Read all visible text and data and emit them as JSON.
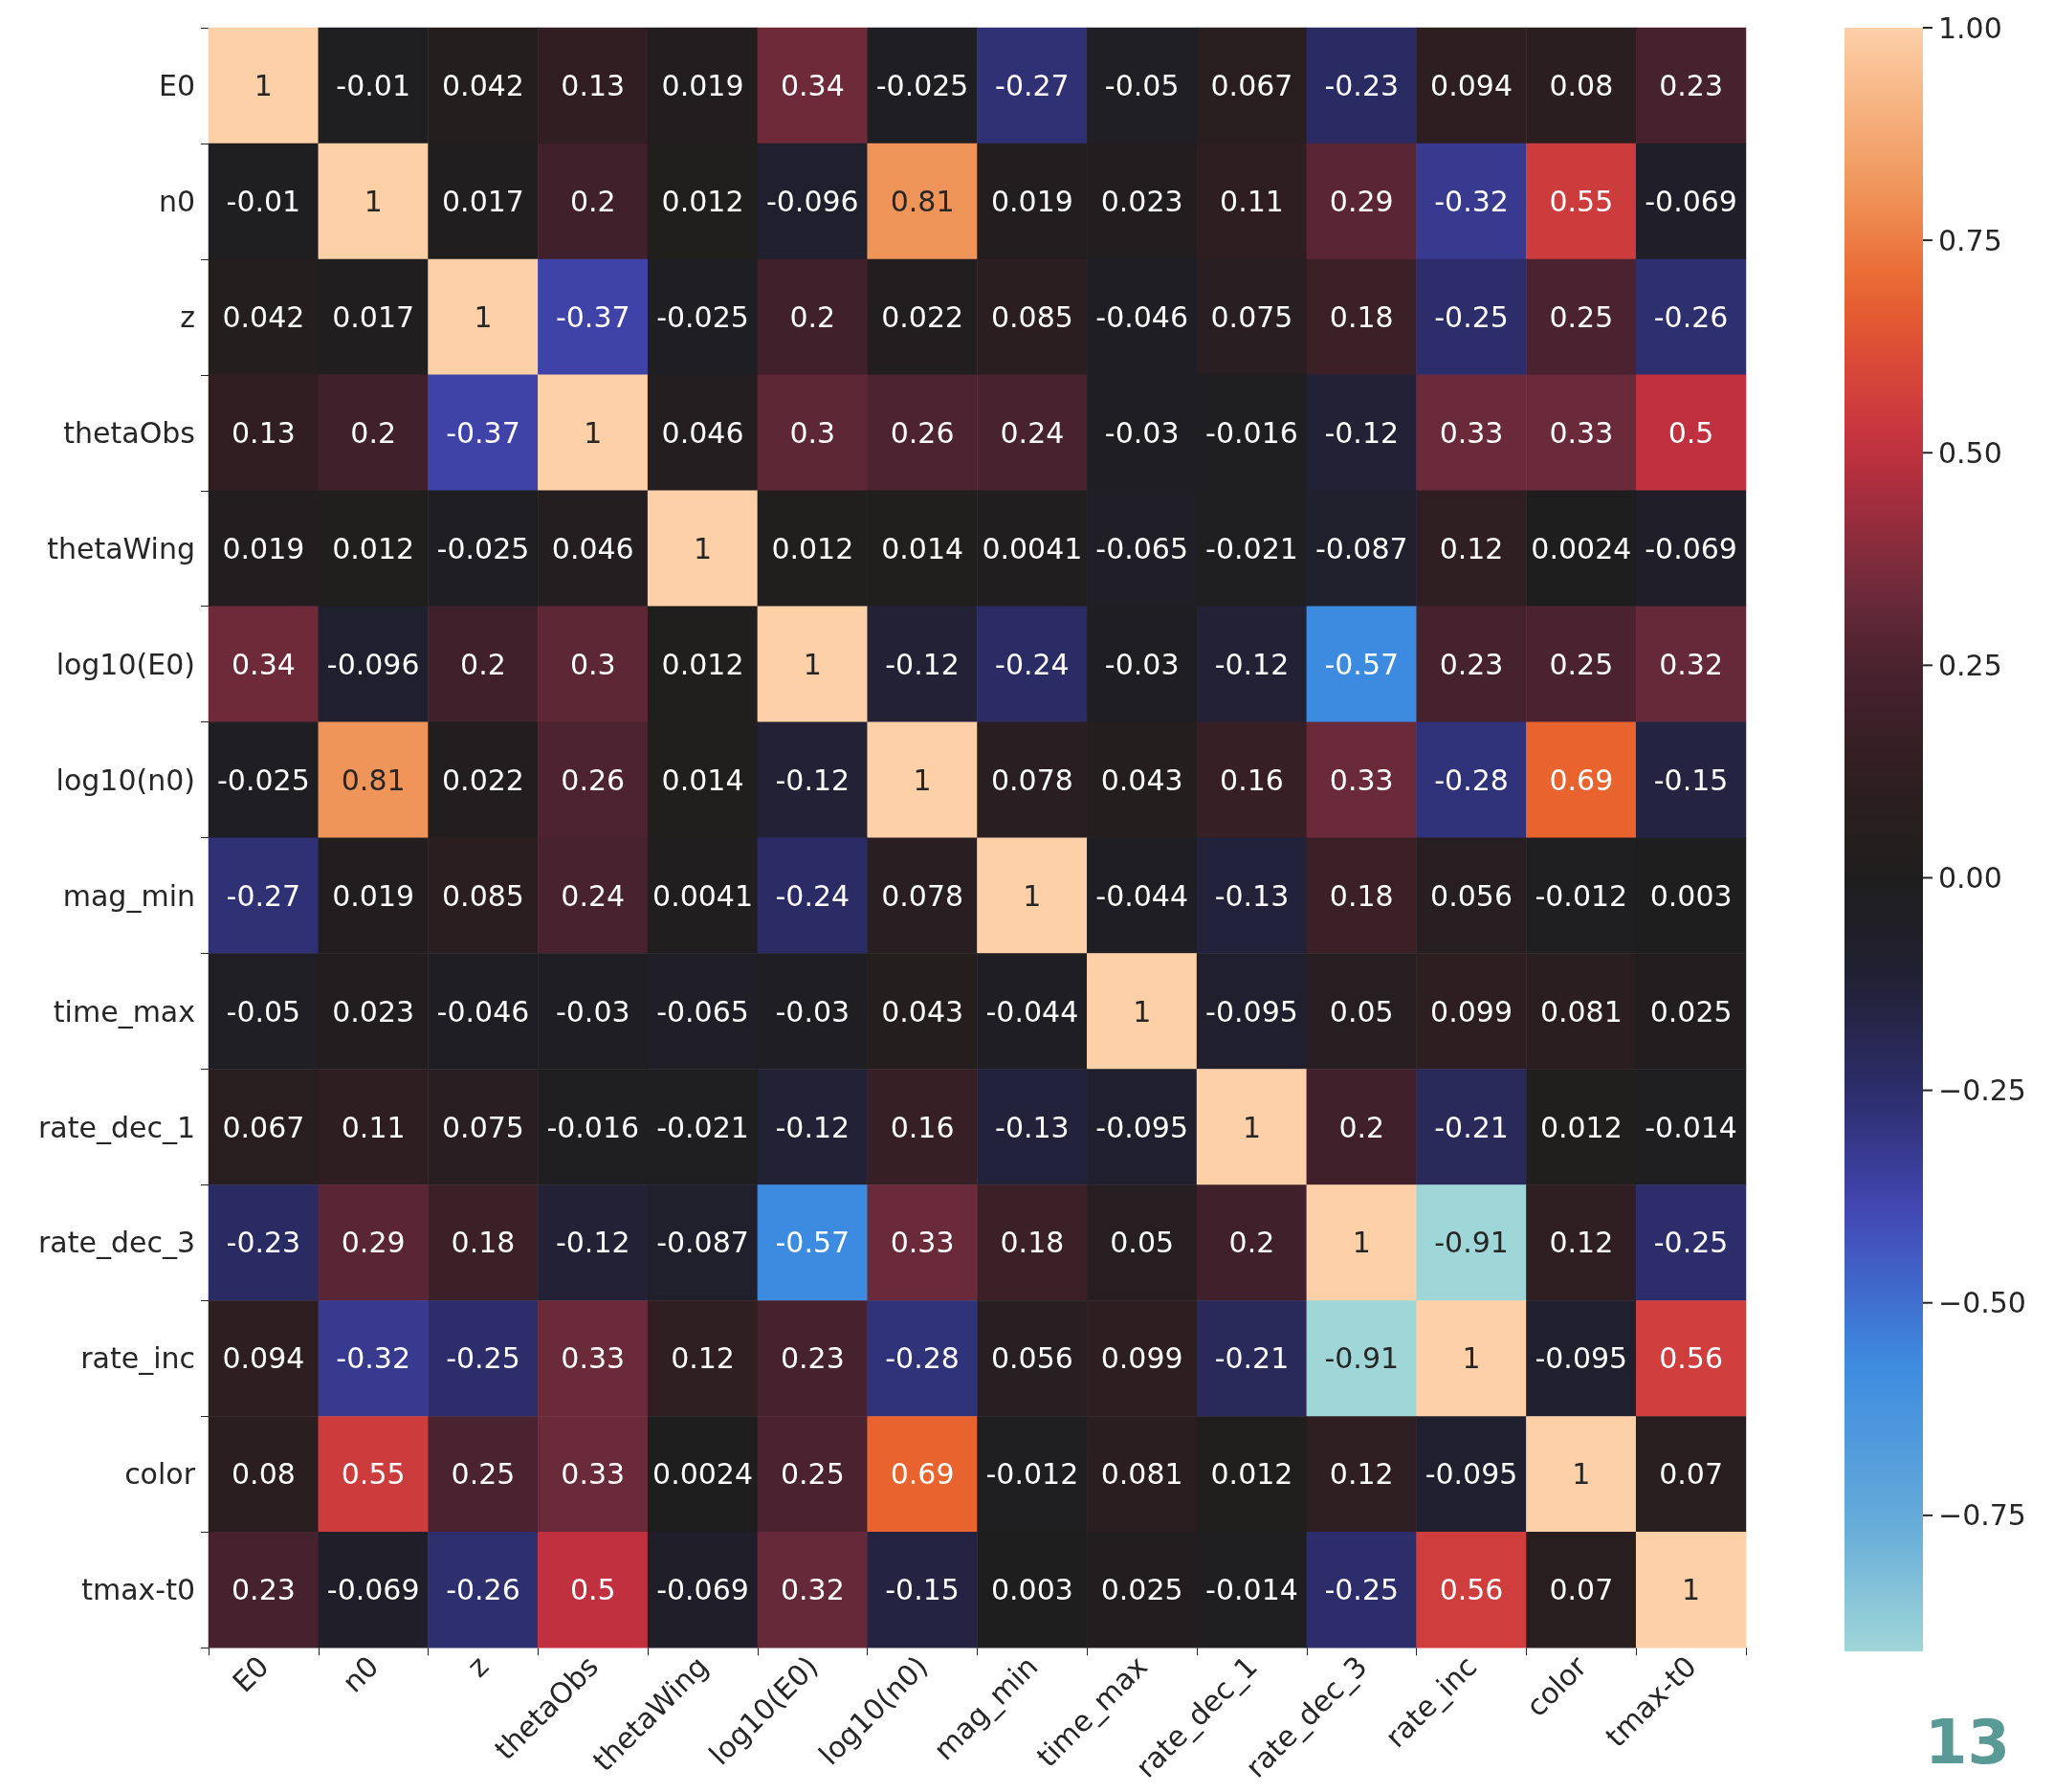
{
  "chart_data": {
    "type": "heatmap",
    "categories": [
      "E0",
      "n0",
      "z",
      "thetaObs",
      "thetaWing",
      "log10(E0)",
      "log10(n0)",
      "mag_min",
      "time_max",
      "rate_dec_1",
      "rate_dec_3",
      "rate_inc",
      "color",
      "tmax-t0"
    ],
    "y_categories": [
      "E0",
      "n0",
      "z",
      "thetaObs",
      "thetaWing",
      "log10(E0)",
      "log10(n0)",
      "mag_min",
      "time_max",
      "rate_dec_1",
      "rate_dec_3",
      "rate_inc",
      "color",
      "tmax-t0"
    ],
    "cells": [
      [
        1,
        -0.01,
        0.042,
        0.13,
        0.019,
        0.34,
        -0.025,
        -0.27,
        -0.05,
        0.067,
        -0.23,
        0.094,
        0.08,
        0.23
      ],
      [
        -0.01,
        1,
        0.017,
        0.2,
        0.012,
        -0.096,
        0.81,
        0.019,
        0.023,
        0.11,
        0.29,
        -0.32,
        0.55,
        -0.069
      ],
      [
        0.042,
        0.017,
        1,
        -0.37,
        -0.025,
        0.2,
        0.022,
        0.085,
        -0.046,
        0.075,
        0.18,
        -0.25,
        0.25,
        -0.26
      ],
      [
        0.13,
        0.2,
        -0.37,
        1,
        0.046,
        0.3,
        0.26,
        0.24,
        -0.03,
        -0.016,
        -0.12,
        0.33,
        0.33,
        0.5
      ],
      [
        0.019,
        0.012,
        -0.025,
        0.046,
        1,
        0.012,
        0.014,
        0.0041,
        -0.065,
        -0.021,
        -0.087,
        0.12,
        0.0024,
        -0.069
      ],
      [
        0.34,
        -0.096,
        0.2,
        0.3,
        0.012,
        1,
        -0.12,
        -0.24,
        -0.03,
        -0.12,
        -0.57,
        0.23,
        0.25,
        0.32
      ],
      [
        -0.025,
        0.81,
        0.022,
        0.26,
        0.014,
        -0.12,
        1,
        0.078,
        0.043,
        0.16,
        0.33,
        -0.28,
        0.69,
        -0.15
      ],
      [
        -0.27,
        0.019,
        0.085,
        0.24,
        0.0041,
        -0.24,
        0.078,
        1,
        -0.044,
        -0.13,
        0.18,
        0.056,
        -0.012,
        0.003
      ],
      [
        -0.05,
        0.023,
        -0.046,
        -0.03,
        -0.065,
        -0.03,
        0.043,
        -0.044,
        1,
        -0.095,
        0.05,
        0.099,
        0.081,
        0.025
      ],
      [
        0.067,
        0.11,
        0.075,
        -0.016,
        -0.021,
        -0.12,
        0.16,
        -0.13,
        -0.095,
        1,
        0.2,
        -0.21,
        0.012,
        -0.014
      ],
      [
        -0.23,
        0.29,
        0.18,
        -0.12,
        -0.087,
        -0.57,
        0.33,
        0.18,
        0.05,
        0.2,
        1,
        -0.91,
        0.12,
        -0.25
      ],
      [
        0.094,
        -0.32,
        -0.25,
        0.33,
        0.12,
        0.23,
        -0.28,
        0.056,
        0.099,
        -0.21,
        -0.91,
        1,
        -0.095,
        0.56
      ],
      [
        0.08,
        0.55,
        0.25,
        0.33,
        0.0024,
        0.25,
        0.69,
        -0.012,
        0.081,
        0.012,
        0.12,
        -0.095,
        1,
        0.07
      ],
      [
        0.23,
        -0.069,
        -0.26,
        0.5,
        -0.069,
        0.32,
        -0.15,
        0.003,
        0.025,
        -0.014,
        -0.25,
        0.56,
        0.07,
        1
      ]
    ],
    "data_labels": true,
    "clim": [
      -0.91,
      1
    ],
    "cticks": [
      {
        "value": -0.75,
        "label": "−0.75"
      },
      {
        "value": -0.5,
        "label": "−0.50"
      },
      {
        "value": -0.25,
        "label": "−0.25"
      },
      {
        "value": 0,
        "label": "0.00"
      },
      {
        "value": 0.25,
        "label": "0.25"
      },
      {
        "value": 0.5,
        "label": "0.50"
      },
      {
        "value": 0.75,
        "label": "0.75"
      },
      {
        "value": 1,
        "label": "1.00"
      }
    ],
    "annotations": [
      "13"
    ]
  }
}
